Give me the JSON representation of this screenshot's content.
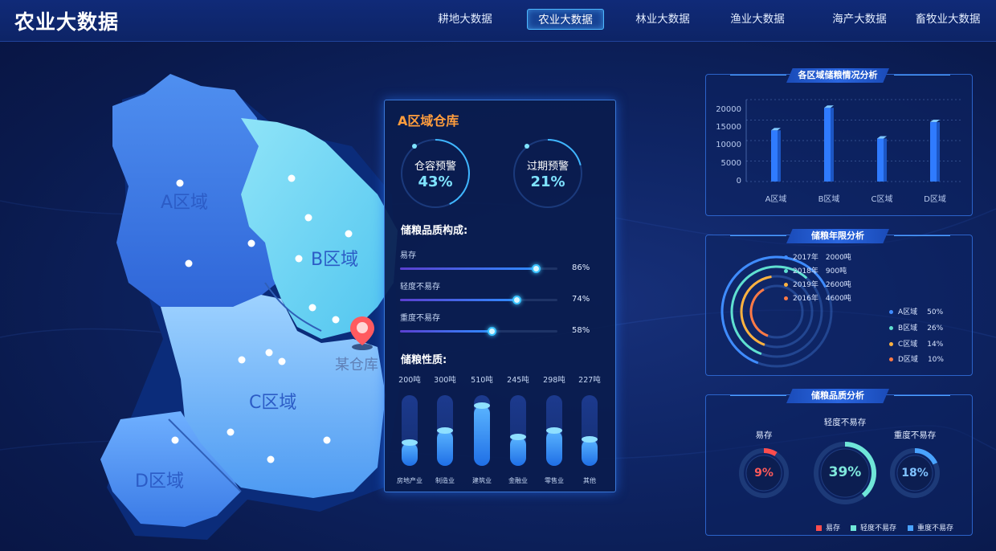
{
  "app_title": "农业大数据",
  "nav": [
    {
      "label": "耕地大数据",
      "active": false
    },
    {
      "label": "农业大数据",
      "active": true
    },
    {
      "label": "林业大数据",
      "active": false
    },
    {
      "label": "渔业大数据",
      "active": false
    },
    {
      "label": "海产大数据",
      "active": false
    },
    {
      "label": "畜牧业大数据",
      "active": false
    }
  ],
  "map": {
    "regions": [
      "A区域",
      "B区域",
      "C区域",
      "D区域"
    ],
    "warehouse_label": "某仓库",
    "marker_icon": "location-pin-icon"
  },
  "popup": {
    "title": "A区域仓库",
    "gauges": [
      {
        "label": "仓容预警",
        "value": "43%",
        "fraction": 0.43
      },
      {
        "label": "过期预警",
        "value": "21%",
        "fraction": 0.21
      }
    ],
    "quality_title": "储粮品质构成:",
    "quality": [
      {
        "name": "易存",
        "percent": "86%",
        "fraction": 0.86
      },
      {
        "name": "轻度不易存",
        "percent": "74%",
        "fraction": 0.74
      },
      {
        "name": "重度不易存",
        "percent": "58%",
        "fraction": 0.58
      }
    ],
    "nature_title": "储粮性质:",
    "nature": [
      {
        "name": "房地产业",
        "amount": "200吨",
        "value": 200
      },
      {
        "name": "制造业",
        "amount": "300吨",
        "value": 300
      },
      {
        "name": "建筑业",
        "amount": "510吨",
        "value": 510
      },
      {
        "name": "金融业",
        "amount": "245吨",
        "value": 245
      },
      {
        "name": "零售业",
        "amount": "298吨",
        "value": 298
      },
      {
        "name": "其他",
        "amount": "227吨",
        "value": 227
      }
    ]
  },
  "storage_panel": {
    "title": "各区域储粮情况分析",
    "chart_data": {
      "type": "bar",
      "categories": [
        "A区域",
        "B区域",
        "C区域",
        "D区域"
      ],
      "values": [
        12500,
        18000,
        10500,
        14500
      ],
      "yticks": [
        "20000",
        "15000",
        "10000",
        "5000",
        "0"
      ],
      "ylim": [
        0,
        20000
      ],
      "grid": true
    }
  },
  "years_panel": {
    "title": "储粮年限分析",
    "chart_data": {
      "type": "pie",
      "rings": [
        {
          "label": "2017年",
          "amount": "2000吨",
          "color": "#3f8cff"
        },
        {
          "label": "2018年",
          "amount": "900吨",
          "color": "#5fe0d0"
        },
        {
          "label": "2019年",
          "amount": "2600吨",
          "color": "#ffb23f"
        },
        {
          "label": "2016年",
          "amount": "4600吨",
          "color": "#ff7a45"
        }
      ],
      "shares": [
        {
          "label": "A区域",
          "percent": "50%",
          "color": "#3f8cff"
        },
        {
          "label": "B区域",
          "percent": "26%",
          "color": "#5fe0d0"
        },
        {
          "label": "C区域",
          "percent": "14%",
          "color": "#ffb23f"
        },
        {
          "label": "D区域",
          "percent": "10%",
          "color": "#ff7a45"
        }
      ]
    }
  },
  "quality_panel": {
    "title": "储粮品质分析",
    "chart_data": {
      "type": "pie",
      "items": [
        {
          "label": "易存",
          "value": "9%",
          "fraction": 0.09,
          "color": "#ff4d4d"
        },
        {
          "label": "轻度不易存",
          "value": "39%",
          "fraction": 0.39,
          "color": "#6fe6d8"
        },
        {
          "label": "重度不易存",
          "value": "18%",
          "fraction": 0.18,
          "color": "#49a3ff"
        }
      ]
    },
    "legend": [
      {
        "label": "易存",
        "color": "#ff4d4d"
      },
      {
        "label": "轻度不易存",
        "color": "#6fe6d8"
      },
      {
        "label": "重度不易存",
        "color": "#49a3ff"
      }
    ]
  }
}
